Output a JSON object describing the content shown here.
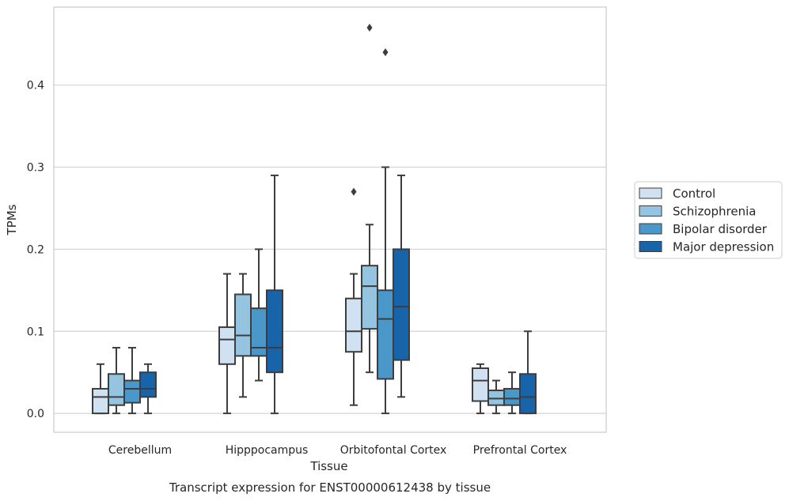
{
  "chart_data": {
    "type": "box",
    "xlabel": "Tissue",
    "ylabel": "TPMs",
    "caption": "Transcript expression for ENST00000612438 by tissue",
    "ylim": [
      -0.023,
      0.495
    ],
    "yticks": [
      "0.0",
      "0.1",
      "0.2",
      "0.3",
      "0.4"
    ],
    "ytick_values": [
      0.0,
      0.1,
      0.2,
      0.3,
      0.4
    ],
    "grid": true,
    "legend_position": "right",
    "categories": [
      "Cerebellum",
      "Hipppocampus",
      "Orbitofontal Cortex",
      "Prefrontal Cortex"
    ],
    "series": [
      {
        "name": "Control",
        "color": "#d0e1f2",
        "boxes": [
          {
            "min": 0.0,
            "q1": 0.0,
            "median": 0.02,
            "q3": 0.03,
            "max": 0.06,
            "outliers": []
          },
          {
            "min": 0.0,
            "q1": 0.06,
            "median": 0.09,
            "q3": 0.105,
            "max": 0.17,
            "outliers": []
          },
          {
            "min": 0.01,
            "q1": 0.075,
            "median": 0.1,
            "q3": 0.14,
            "max": 0.17,
            "outliers": [
              0.27
            ]
          },
          {
            "min": 0.0,
            "q1": 0.015,
            "median": 0.04,
            "q3": 0.055,
            "max": 0.06,
            "outliers": []
          }
        ]
      },
      {
        "name": "Schizophrenia",
        "color": "#94c4df",
        "boxes": [
          {
            "min": 0.0,
            "q1": 0.01,
            "median": 0.02,
            "q3": 0.048,
            "max": 0.08,
            "outliers": []
          },
          {
            "min": 0.02,
            "q1": 0.07,
            "median": 0.095,
            "q3": 0.145,
            "max": 0.17,
            "outliers": []
          },
          {
            "min": 0.05,
            "q1": 0.103,
            "median": 0.155,
            "q3": 0.18,
            "max": 0.23,
            "outliers": [
              0.47
            ]
          },
          {
            "min": 0.0,
            "q1": 0.01,
            "median": 0.018,
            "q3": 0.028,
            "max": 0.04,
            "outliers": []
          }
        ]
      },
      {
        "name": "Bipolar disorder",
        "color": "#4a98c9",
        "boxes": [
          {
            "min": 0.0,
            "q1": 0.013,
            "median": 0.03,
            "q3": 0.04,
            "max": 0.08,
            "outliers": []
          },
          {
            "min": 0.04,
            "q1": 0.07,
            "median": 0.08,
            "q3": 0.128,
            "max": 0.2,
            "outliers": []
          },
          {
            "min": 0.0,
            "q1": 0.042,
            "median": 0.115,
            "q3": 0.15,
            "max": 0.3,
            "outliers": [
              0.44
            ]
          },
          {
            "min": 0.0,
            "q1": 0.01,
            "median": 0.018,
            "q3": 0.03,
            "max": 0.05,
            "outliers": []
          }
        ]
      },
      {
        "name": "Major depression",
        "color": "#1764ab",
        "boxes": [
          {
            "min": 0.0,
            "q1": 0.02,
            "median": 0.03,
            "q3": 0.05,
            "max": 0.06,
            "outliers": []
          },
          {
            "min": 0.0,
            "q1": 0.05,
            "median": 0.08,
            "q3": 0.15,
            "max": 0.29,
            "outliers": []
          },
          {
            "min": 0.02,
            "q1": 0.065,
            "median": 0.13,
            "q3": 0.2,
            "max": 0.29,
            "outliers": []
          },
          {
            "min": 0.0,
            "q1": 0.0,
            "median": 0.02,
            "q3": 0.048,
            "max": 0.1,
            "outliers": []
          }
        ]
      }
    ]
  }
}
